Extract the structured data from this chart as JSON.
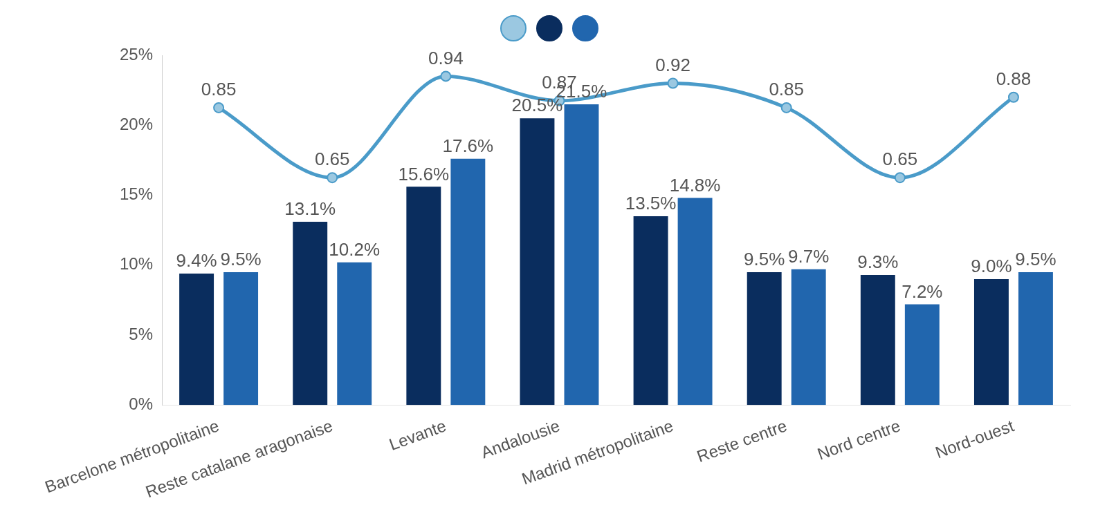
{
  "chart_data": {
    "type": "bar",
    "categories": [
      "Barcelone métropolitaine",
      "Reste catalane aragonaise",
      "Levante",
      "Andalousie",
      "Madrid métropolitaine",
      "Reste centre",
      "Nord centre",
      "Nord-ouest"
    ],
    "series": [
      {
        "type": "line",
        "axis": "y2",
        "color": "#4a9bc9",
        "values": [
          0.85,
          0.65,
          0.94,
          0.87,
          0.92,
          0.85,
          0.65,
          0.88
        ],
        "value_labels": [
          "0.85",
          "0.65",
          "0.94",
          "0.87",
          "0.92",
          "0.85",
          "0.65",
          "0.88"
        ]
      },
      {
        "color": "#0a2d5e",
        "values": [
          9.4,
          13.1,
          15.6,
          20.5,
          13.5,
          9.5,
          9.3,
          9.0
        ],
        "value_labels": [
          "9.4%",
          "13.1%",
          "15.6%",
          "20.5%",
          "13.5%",
          "9.5%",
          "9.3%",
          "9.0%"
        ]
      },
      {
        "color": "#2166ae",
        "values": [
          9.5,
          10.2,
          17.6,
          21.5,
          14.8,
          9.7,
          7.2,
          9.5
        ],
        "value_labels": [
          "9.5%",
          "10.2%",
          "17.6%",
          "21.5%",
          "14.8%",
          "9.7%",
          "7.2%",
          "9.5%"
        ]
      }
    ],
    "ylim": [
      0,
      25
    ],
    "yticks": [
      {
        "value": 0,
        "label": "0%"
      },
      {
        "value": 5,
        "label": "5%"
      },
      {
        "value": 10,
        "label": "10%"
      },
      {
        "value": 15,
        "label": "15%"
      },
      {
        "value": 20,
        "label": "20%"
      },
      {
        "value": 25,
        "label": "25%"
      }
    ],
    "y2lim": [
      0,
      1
    ],
    "marker": "circle",
    "grid": false
  }
}
